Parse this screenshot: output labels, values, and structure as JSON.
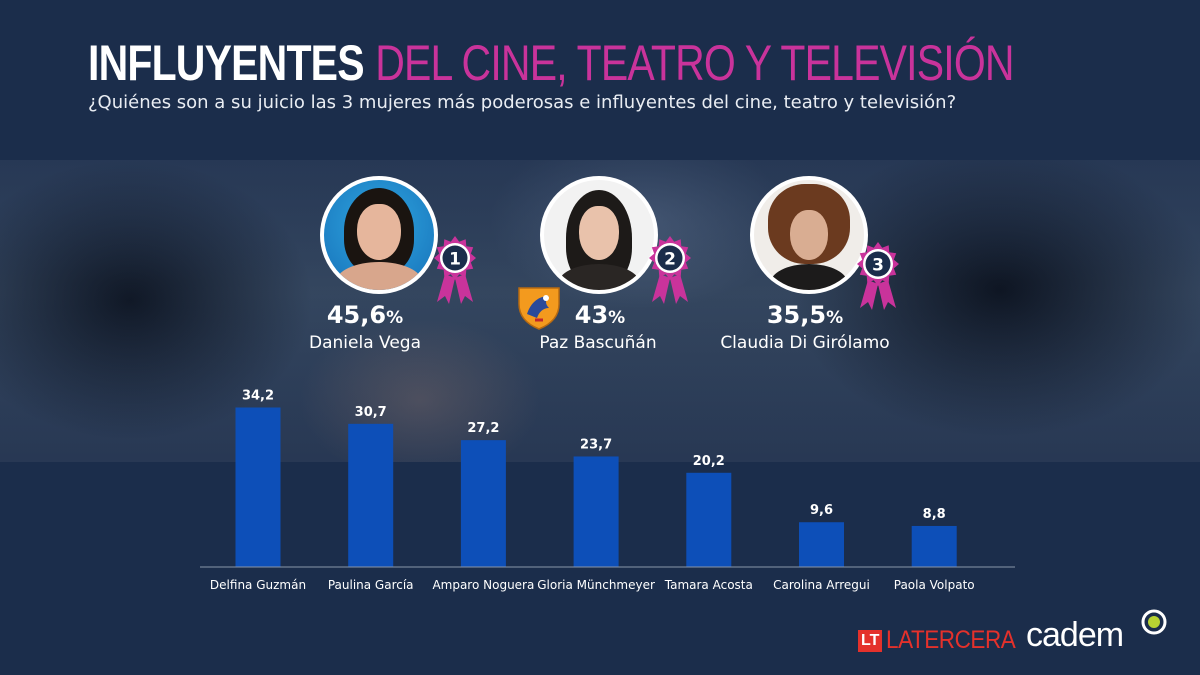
{
  "header": {
    "title_strong": "INFLUYENTES",
    "title_accent": "DEL CINE, TEATRO Y TELEVISIÓN",
    "subtitle": "¿Quiénes son a su juicio las 3 mujeres más poderosas e influyentes del cine, teatro y televisión?"
  },
  "winners": [
    {
      "rank": "1",
      "value": "45,6",
      "unit": "%",
      "name": "Daniela Vega"
    },
    {
      "rank": "2",
      "value": "43",
      "unit": "%",
      "name": "Paz Bascuñán"
    },
    {
      "rank": "3",
      "value": "35,5",
      "unit": "%",
      "name": "Claudia Di Girólamo"
    }
  ],
  "chart_data": {
    "type": "bar",
    "categories": [
      "Delfina Guzmán",
      "Paulina García",
      "Amparo Noguera",
      "Gloria Münchmeyer",
      "Tamara Acosta",
      "Carolina Arregui",
      "Paola Volpato"
    ],
    "values": [
      34.2,
      30.7,
      27.2,
      23.7,
      20.2,
      9.6,
      8.8
    ],
    "value_labels": [
      "34,2",
      "30,7",
      "27,2",
      "23,7",
      "20,2",
      "9,6",
      "8,8"
    ],
    "ylim": [
      0,
      40
    ],
    "grid": false,
    "bar_color": "#0d4fb8"
  },
  "colors": {
    "accent": "#c9339b",
    "background": "#1b2d4b",
    "rosette": "#c9339b"
  },
  "logos": {
    "lt_mark": "LT",
    "lt_word": "LATERCERA",
    "cadem": "cadem"
  },
  "icons": [
    "rosette-ribbon-icon",
    "shield-badge-icon",
    "cadem-dot-icon"
  ]
}
